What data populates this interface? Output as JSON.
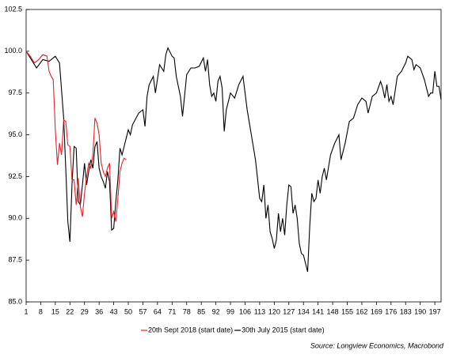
{
  "chart_data": {
    "type": "line",
    "source": "Source: Longview Economics, Macrobond",
    "xlim": [
      1,
      200
    ],
    "xticks": [
      1,
      8,
      15,
      22,
      29,
      36,
      43,
      50,
      57,
      64,
      71,
      78,
      85,
      92,
      99,
      106,
      113,
      120,
      127,
      134,
      141,
      148,
      155,
      162,
      169,
      176,
      183,
      190,
      197
    ],
    "ylim": [
      85,
      102.5
    ],
    "yticks": [
      {
        "value": 85,
        "label": "85.0"
      },
      87.5,
      {
        "value": 90,
        "label": "90.0"
      },
      92.5,
      {
        "value": 95,
        "label": "95.0"
      },
      97.5,
      {
        "value": 100,
        "label": "100.0"
      },
      102.5
    ],
    "grid": false,
    "legend": "bottom",
    "series": [
      {
        "name": "20th Sept 2018 (start date)",
        "color": "#e8202a",
        "x": [
          1,
          3,
          5,
          7,
          9,
          11,
          12,
          13,
          14,
          15,
          16,
          17,
          18,
          19,
          20,
          21,
          22,
          23,
          24,
          25,
          26,
          27,
          28,
          29,
          30,
          31,
          32,
          33,
          34,
          35,
          36,
          37,
          38,
          39,
          40,
          41,
          42,
          43,
          44,
          45,
          46,
          47,
          48,
          49
        ],
        "values": [
          100,
          99.7,
          99.3,
          99.5,
          99.8,
          99.7,
          98.8,
          98.5,
          98.3,
          95.3,
          93.2,
          94.5,
          93.8,
          95.9,
          95.8,
          94.4,
          94.3,
          92.3,
          92.3,
          90.8,
          92.4,
          90.7,
          90.1,
          91.5,
          92.5,
          93.3,
          93,
          93.8,
          96,
          95.7,
          95,
          93.3,
          92.8,
          92.5,
          93,
          93.3,
          90,
          90.4,
          89.8,
          91.2,
          92.8,
          93.3,
          93.6,
          93.5
        ]
      },
      {
        "name": "30th July 2015 (start date)",
        "color": "#000000",
        "x": [
          1,
          3,
          6,
          9,
          12,
          15,
          17,
          19,
          20,
          21,
          22,
          23,
          24,
          25,
          26,
          27,
          28,
          29,
          30,
          31,
          32,
          33,
          34,
          35,
          36,
          37,
          38,
          39,
          40,
          41,
          42,
          43,
          44,
          45,
          46,
          47,
          48,
          49,
          50,
          51,
          52,
          55,
          57,
          58,
          59,
          60,
          62,
          63,
          65,
          67,
          68,
          69,
          71,
          72,
          73,
          75,
          76,
          78,
          80,
          82,
          84,
          86,
          87,
          88,
          89,
          90,
          91,
          92,
          93,
          94,
          95,
          96,
          97,
          99,
          101,
          103,
          105,
          107,
          109,
          111,
          113,
          114,
          115,
          116,
          117,
          118,
          119,
          120,
          121,
          122,
          123,
          124,
          125,
          126,
          127,
          128,
          129,
          130,
          131,
          132,
          133,
          134,
          135,
          136,
          137,
          138,
          139,
          140,
          141,
          142,
          143,
          144,
          145,
          147,
          149,
          151,
          152,
          154,
          156,
          158,
          160,
          162,
          164,
          165,
          167,
          169,
          171,
          172,
          173,
          174,
          175,
          176,
          177,
          179,
          181,
          183,
          184,
          186,
          187,
          188,
          190,
          192,
          193,
          194,
          195,
          196,
          197,
          198,
          199,
          200
        ],
        "values": [
          100,
          99.6,
          99,
          99.5,
          99.4,
          99.7,
          99.3,
          96,
          93,
          89.8,
          88.6,
          92,
          94.3,
          94.2,
          91,
          90.8,
          92,
          93.3,
          92,
          92.8,
          93.5,
          93,
          94.3,
          94.6,
          93,
          92.5,
          92.2,
          91.8,
          92.8,
          92.2,
          89.3,
          89.4,
          91,
          92.3,
          94.2,
          93.8,
          94.3,
          94.8,
          95.3,
          95,
          95.6,
          96.3,
          96.5,
          95.5,
          97.3,
          98,
          98.5,
          97.5,
          99.2,
          98.8,
          99.8,
          100.2,
          99.7,
          99.6,
          98.5,
          97.3,
          96.1,
          98.6,
          99,
          99,
          99.1,
          99.6,
          98.8,
          99.5,
          98,
          97.3,
          97.5,
          97,
          98.2,
          98.5,
          97.8,
          95.2,
          96.5,
          97.5,
          97.2,
          98,
          98.5,
          96.5,
          95,
          93.5,
          91.2,
          91,
          92,
          90,
          90.8,
          89.2,
          88.8,
          88.2,
          88.7,
          90.3,
          89.2,
          90,
          89,
          90.8,
          92,
          91.9,
          90.3,
          90.8,
          90,
          88.5,
          87.9,
          87.8,
          87.3,
          86.8,
          89.5,
          91.5,
          91,
          91.2,
          92.3,
          91.5,
          92.5,
          93,
          92.3,
          93.8,
          94.5,
          95,
          93.5,
          94.5,
          95.8,
          96,
          96.8,
          97.2,
          97,
          96.3,
          97.3,
          97.5,
          98.2,
          97.8,
          97.2,
          98,
          97,
          97.3,
          96.8,
          98.5,
          98.8,
          99.3,
          99.7,
          99.5,
          98.9,
          99.2,
          99,
          98.3,
          97.8,
          97.3,
          97.5,
          97.5,
          98.8,
          97.9,
          97.9,
          97.1
        ]
      }
    ]
  }
}
